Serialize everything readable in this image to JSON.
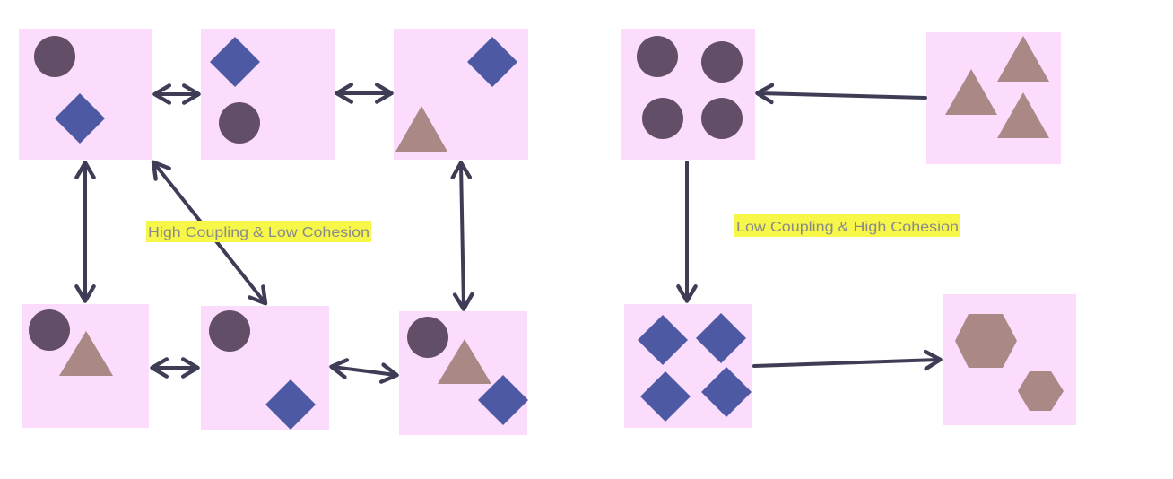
{
  "left_diagram": {
    "label": "High Coupling & Low Cohesion"
  },
  "right_diagram": {
    "label": "Low Coupling & High Cohesion"
  },
  "colors": {
    "module_fill": "#fcdcfc",
    "circle": "#624f67",
    "diamond": "#4d5aa3",
    "triangle": "#a98886",
    "arrow": "#3f3d56",
    "label_highlight": "#f7f74a"
  }
}
